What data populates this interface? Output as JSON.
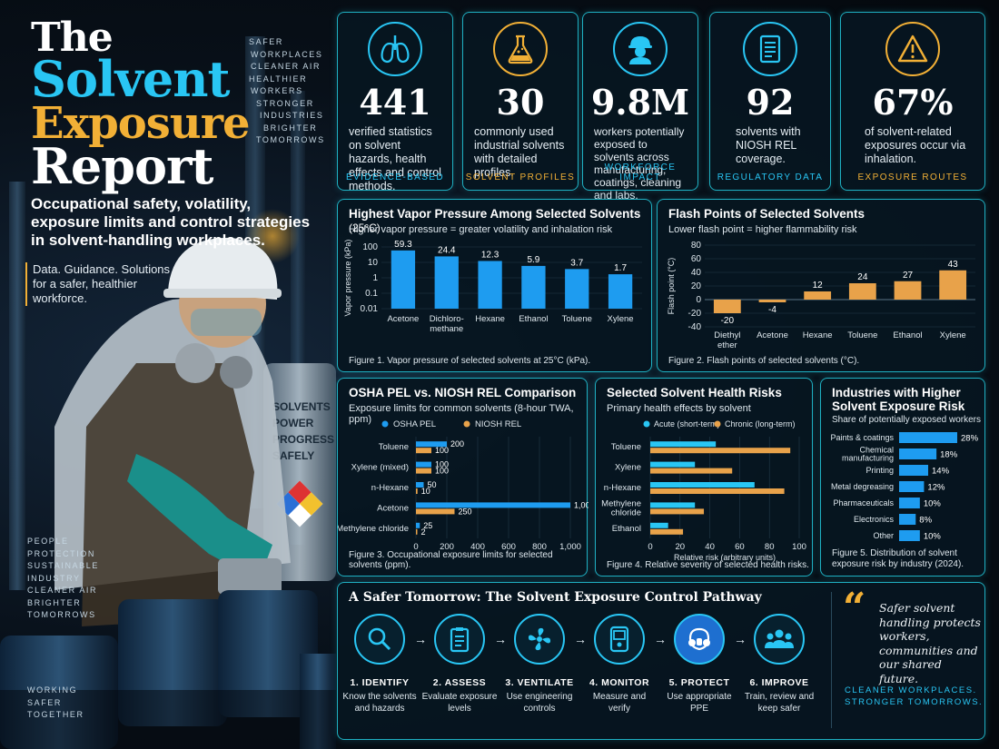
{
  "title_lines": [
    "The",
    "Solvent",
    "Exposure",
    "Report"
  ],
  "side_words_top": [
    "SAFER",
    "WORKPLACES",
    "CLEANER AIR",
    "HEALTHIER",
    "WORKERS",
    "STRONGER",
    "INDUSTRIES",
    "BRIGHTER",
    "TOMORROWS"
  ],
  "side_words_mid": [
    "PEOPLE",
    "PROTECTION",
    "SUSTAINABLE",
    "INDUSTRY",
    "CLEANER AIR",
    "BRIGHTER",
    "TOMORROWS"
  ],
  "side_words_bottom": [
    "WORKING",
    "SAFER",
    "TOGETHER"
  ],
  "subtitle": "Occupational safety, volatility, exposure limits and control strategies in solvent-handling workplaces.",
  "tagline": [
    "Data. Guidance. Solutions",
    "for a safer, healthier",
    "workforce."
  ],
  "tank_text": [
    "SOLVENTS",
    "POWER",
    "PROGRESS",
    "SAFELY"
  ],
  "stats": [
    {
      "icon": "lungs-icon",
      "value": "441",
      "desc": "verified statistics on solvent hazards, health effects and control methods.",
      "label": "EVIDENCE-BASED",
      "label_color": "#29c6f4"
    },
    {
      "icon": "flask-icon",
      "value": "30",
      "desc": "commonly used industrial solvents with detailed profiles.",
      "label": "SOLVENT PROFILES",
      "label_color": "#f2b036"
    },
    {
      "icon": "worker-icon",
      "value": "9.8M",
      "desc": "workers potentially exposed to solvents across manufacturing, coatings, cleaning and labs.",
      "label": "WORKFORCE IMPACT",
      "label_color": "#29c6f4"
    },
    {
      "icon": "document-icon",
      "value": "92",
      "desc": "solvents with NIOSH REL coverage.",
      "label": "REGULATORY DATA",
      "label_color": "#29c6f4"
    },
    {
      "icon": "warning-icon",
      "value": "67%",
      "desc": "of solvent-related exposures occur via inhalation.",
      "label": "EXPOSURE ROUTES",
      "label_color": "#f2b036"
    }
  ],
  "colors": {
    "cyan": "#29c6f4",
    "blue": "#1e9cf0",
    "gold": "#f2b036",
    "orange": "#e8a24a"
  },
  "chart1": {
    "title": "Highest Vapor Pressure Among Selected Solvents",
    "title_suffix": " (25°C)",
    "subtitle": "Higher vapor pressure = greater volatility and inhalation risk",
    "caption": "Figure 1. Vapor pressure of selected solvents at 25°C (kPa)."
  },
  "chart2": {
    "title": "Flash Points of Selected Solvents",
    "subtitle": "Lower flash point = higher flammability risk",
    "caption": "Figure 2. Flash points of selected solvents (°C)."
  },
  "chart3": {
    "title": "OSHA PEL vs. NIOSH REL Comparison",
    "subtitle": "Exposure limits for common solvents (8-hour TWA, ppm)",
    "caption": "Figure 3. Occupational exposure limits for selected solvents (ppm)."
  },
  "chart4": {
    "title": "Selected Solvent Health Risks",
    "subtitle": "Primary health effects by solvent",
    "caption": "Figure 4. Relative severity of selected health risks."
  },
  "chart5": {
    "title_lines": [
      "Industries with Higher",
      "Solvent Exposure Risk"
    ],
    "subtitle": "Share of potentially exposed workers",
    "caption_lines": [
      "Figure 5. Distribution of solvent",
      "exposure risk by industry (2024)."
    ]
  },
  "chart_data": [
    {
      "type": "bar",
      "categories": [
        "Acetone",
        "Dichloro-\nmethane",
        "Hexane",
        "Ethanol",
        "Toluene",
        "Xylene"
      ],
      "values": [
        59.3,
        24.4,
        12.3,
        5.9,
        3.7,
        1.7
      ],
      "value_labels": [
        "59.3",
        "24.4",
        "12.3",
        "5.9",
        "3.7",
        "1.7"
      ],
      "ylabel": "Vapor pressure (kPa)",
      "yscale": "log",
      "yticks": [
        100,
        10,
        1,
        0.1,
        0.01
      ],
      "ytick_labels": [
        "100",
        "10",
        "1",
        "0.1",
        "0.01"
      ],
      "ylim": [
        0.01,
        100
      ],
      "color": "#1e9cf0"
    },
    {
      "type": "bar",
      "categories": [
        "Diethyl\nether",
        "Acetone",
        "Hexane",
        "Toluene",
        "Ethanol",
        "Xylene"
      ],
      "values": [
        -20,
        -4,
        12,
        24,
        27,
        43
      ],
      "value_labels": [
        "-20",
        "-4",
        "12",
        "24",
        "27",
        "43"
      ],
      "ylabel": "Flash point (°C)",
      "yticks": [
        80,
        60,
        40,
        20,
        0,
        -20,
        -40
      ],
      "ylim": [
        -40,
        80
      ],
      "color": "#e8a24a"
    },
    {
      "type": "bar",
      "orientation": "horizontal",
      "categories": [
        "Toluene",
        "Xylene (mixed)",
        "n-Hexane",
        "Acetone",
        "Methylene chloride"
      ],
      "series": [
        {
          "name": "OSHA PEL",
          "values": [
            200,
            100,
            50,
            1000,
            25
          ],
          "labels": [
            "200",
            "100",
            "50",
            "1,000",
            "25"
          ],
          "color": "#1e9cf0"
        },
        {
          "name": "NIOSH REL",
          "values": [
            100,
            100,
            10,
            250,
            2
          ],
          "labels": [
            "100",
            "100",
            "10",
            "250",
            "2"
          ],
          "color": "#e8a24a"
        }
      ],
      "xticks": [
        0,
        200,
        400,
        600,
        800,
        1000
      ],
      "xtick_labels": [
        "0",
        "200",
        "400",
        "600",
        "800",
        "1,000"
      ],
      "xlim": [
        0,
        1000
      ]
    },
    {
      "type": "bar",
      "orientation": "horizontal",
      "categories": [
        "Toluene",
        "Xylene",
        "n-Hexane",
        "Methylene\nchloride",
        "Ethanol"
      ],
      "series": [
        {
          "name": "Acute (short-term)",
          "values": [
            44,
            30,
            70,
            30,
            12
          ],
          "color": "#29c6f4"
        },
        {
          "name": "Chronic (long-term)",
          "values": [
            94,
            55,
            90,
            36,
            22
          ],
          "color": "#e8a24a"
        }
      ],
      "xlabel": "Relative risk (arbitrary units)",
      "xticks": [
        0,
        20,
        40,
        60,
        80,
        100
      ],
      "xlim": [
        0,
        100
      ]
    },
    {
      "type": "bar",
      "orientation": "horizontal",
      "categories": [
        "Paints & coatings",
        "Chemical\nmanufacturing",
        "Printing",
        "Metal degreasing",
        "Pharmaceuticals",
        "Electronics",
        "Other"
      ],
      "values": [
        28,
        18,
        14,
        12,
        10,
        8,
        10
      ],
      "value_labels": [
        "28%",
        "18%",
        "14%",
        "12%",
        "10%",
        "8%",
        "10%"
      ],
      "color": "#1e9cf0"
    }
  ],
  "pathway": {
    "title": "A Safer Tomorrow: The Solvent Exposure Control Pathway",
    "steps": [
      {
        "icon": "magnifier-icon",
        "name": "1. IDENTIFY",
        "desc": "Know the solvents and hazards"
      },
      {
        "icon": "clipboard-icon",
        "name": "2. ASSESS",
        "desc": "Evaluate exposure levels"
      },
      {
        "icon": "fan-icon",
        "name": "3. VENTILATE",
        "desc": "Use engineering controls"
      },
      {
        "icon": "monitor-icon",
        "name": "4. MONITOR",
        "desc": "Measure and verify"
      },
      {
        "icon": "respirator-icon",
        "name": "5. PROTECT",
        "desc": "Use appropriate PPE"
      },
      {
        "icon": "people-icon",
        "name": "6. IMPROVE",
        "desc": "Train, review and keep safer"
      }
    ]
  },
  "quote": {
    "text": "Safer solvent handling protects workers, communities and our shared future.",
    "tagline_lines": [
      "CLEANER WORKPLACES.",
      "STRONGER TOMORROWS."
    ]
  }
}
